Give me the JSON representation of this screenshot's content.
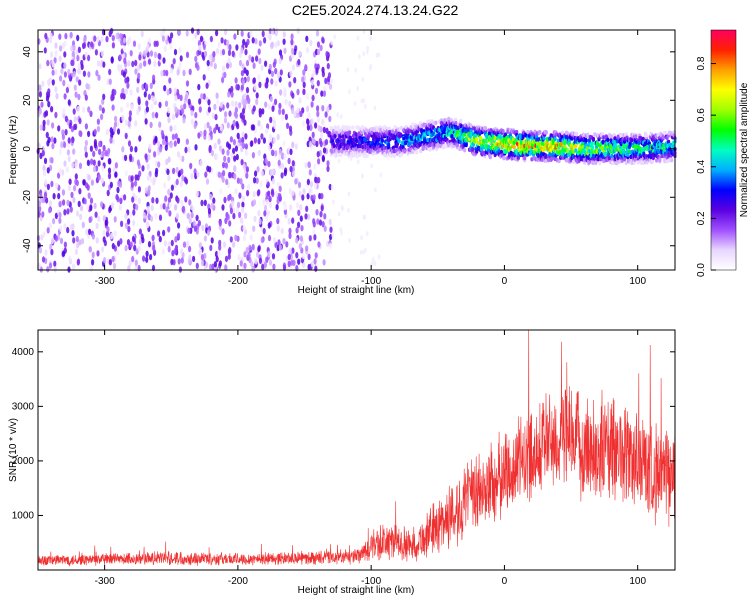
{
  "title": "C2E5.2024.274.13.24.G22",
  "chart_data": [
    {
      "type": "heatmap",
      "title": "C2E5.2024.274.13.24.G22",
      "xlabel": "Height of straight line (km)",
      "ylabel": "Frequency (Hz)",
      "xlim": [
        -350,
        128
      ],
      "ylim": [
        -50,
        49
      ],
      "xticks": [
        -300,
        -200,
        -100,
        0,
        100
      ],
      "yticks": [
        -40,
        -20,
        0,
        20,
        40
      ],
      "colorbar": {
        "label": "Normalized spectral amplitude",
        "range": [
          0.0,
          0.93
        ],
        "ticks": [
          0.0,
          0.2,
          0.4,
          0.6,
          0.8
        ],
        "colors": [
          "#ffffff",
          "#e8d6ff",
          "#a050ff",
          "#5a00e0",
          "#0000ff",
          "#00b0ff",
          "#00ffc0",
          "#00ff00",
          "#a0ff00",
          "#ffff00",
          "#ffa000",
          "#ff2000",
          "#ff0060"
        ]
      },
      "signal_track": {
        "x": [
          -130,
          -100,
          -80,
          -60,
          -40,
          -20,
          0,
          20,
          40,
          60,
          80,
          100,
          128
        ],
        "frequency": [
          3,
          3,
          3,
          5,
          7,
          3,
          2,
          1,
          1,
          0,
          0,
          0,
          1
        ],
        "peak_amplitude": [
          0.3,
          0.35,
          0.4,
          0.45,
          0.5,
          0.75,
          0.8,
          0.82,
          0.78,
          0.7,
          0.6,
          0.55,
          0.5
        ]
      },
      "noise_region_x": [
        -350,
        -130
      ]
    },
    {
      "type": "line",
      "xlabel": "Height of straight line (km)",
      "ylabel": "SNR (10 * v/v)",
      "xlim": [
        -350,
        128
      ],
      "ylim": [
        0,
        4400
      ],
      "xticks": [
        -300,
        -200,
        -100,
        0,
        100
      ],
      "yticks": [
        1000,
        2000,
        3000,
        4000
      ],
      "color": "#f03030",
      "series": [
        {
          "x": [
            -350,
            -300,
            -250,
            -200,
            -150,
            -110,
            -100,
            -90,
            -80,
            -70,
            -60,
            -50,
            -40,
            -30,
            -20,
            -10,
            0,
            10,
            20,
            30,
            40,
            50,
            60,
            70,
            80,
            90,
            100,
            110,
            120,
            128
          ],
          "values": [
            180,
            190,
            220,
            200,
            220,
            240,
            420,
            520,
            500,
            440,
            600,
            820,
            1000,
            1250,
            1400,
            1550,
            1750,
            1950,
            2150,
            2350,
            2400,
            2350,
            2250,
            2200,
            2200,
            2150,
            2000,
            1850,
            1700,
            1700
          ],
          "spread": [
            120,
            130,
            150,
            130,
            140,
            160,
            350,
            400,
            380,
            350,
            450,
            600,
            700,
            800,
            850,
            900,
            900,
            950,
            1000,
            1050,
            1100,
            1100,
            1100,
            1150,
            1150,
            1100,
            1100,
            1050,
            1000,
            1000
          ]
        }
      ]
    }
  ]
}
